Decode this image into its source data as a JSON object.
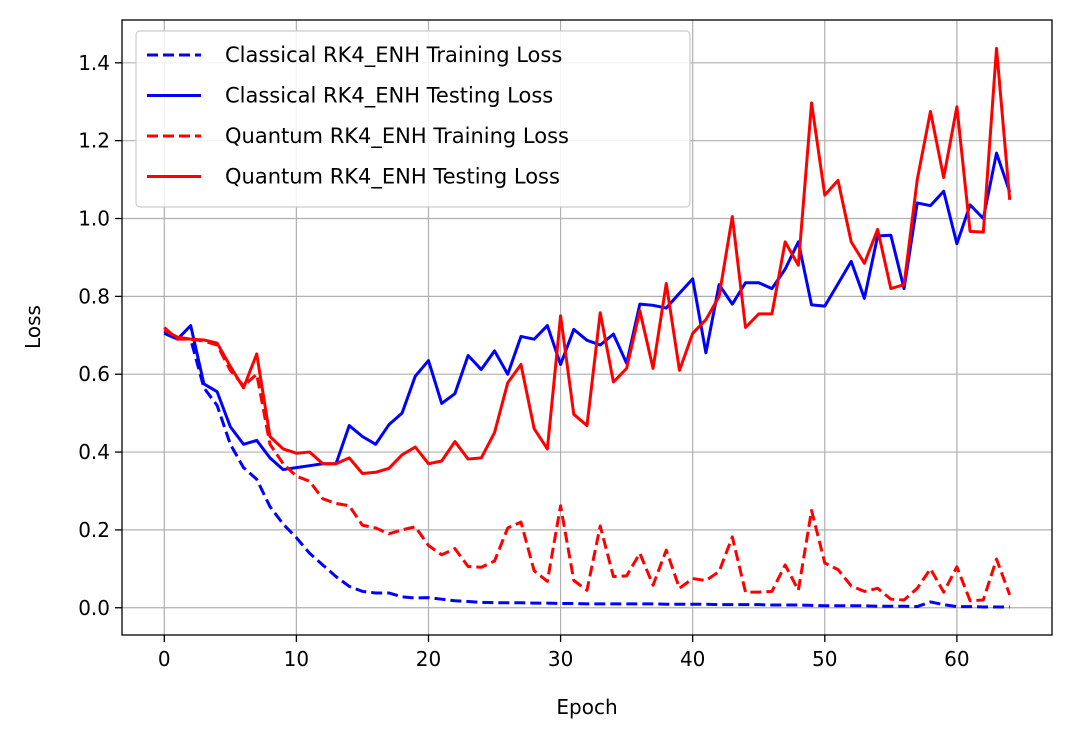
{
  "chart_data": {
    "type": "line",
    "title": "",
    "xlabel": "Epoch",
    "ylabel": "Loss",
    "xlim": [
      -3.2,
      67.2
    ],
    "ylim": [
      -0.07,
      1.51
    ],
    "xticks": [
      0,
      10,
      20,
      30,
      40,
      50,
      60
    ],
    "xtick_labels": [
      "0",
      "10",
      "20",
      "30",
      "40",
      "50",
      "60"
    ],
    "yticks": [
      0.0,
      0.2,
      0.4,
      0.6,
      0.8,
      1.0,
      1.2,
      1.4
    ],
    "ytick_labels": [
      "0.0",
      "0.2",
      "0.4",
      "0.6",
      "0.8",
      "1.0",
      "1.2",
      "1.4"
    ],
    "grid": true,
    "legend_position": "top-left",
    "series": [
      {
        "name": "Classical RK4_ENH Training Loss",
        "color": "#0000ff",
        "style": "dashed",
        "values": [
          0.71,
          0.695,
          0.69,
          0.565,
          0.52,
          0.42,
          0.36,
          0.33,
          0.26,
          0.215,
          0.18,
          0.14,
          0.11,
          0.08,
          0.055,
          0.042,
          0.038,
          0.038,
          0.028,
          0.025,
          0.026,
          0.022,
          0.018,
          0.016,
          0.014,
          0.013,
          0.013,
          0.013,
          0.012,
          0.012,
          0.011,
          0.011,
          0.01,
          0.01,
          0.01,
          0.01,
          0.01,
          0.01,
          0.009,
          0.009,
          0.009,
          0.009,
          0.008,
          0.008,
          0.008,
          0.008,
          0.007,
          0.007,
          0.007,
          0.006,
          0.005,
          0.005,
          0.005,
          0.005,
          0.004,
          0.004,
          0.004,
          0.003,
          0.015,
          0.008,
          0.003,
          0.003,
          0.002,
          0.002,
          0.002
        ]
      },
      {
        "name": "Classical RK4_ENH Testing Loss",
        "color": "#0000ff",
        "style": "solid",
        "values": [
          0.705,
          0.69,
          0.725,
          0.575,
          0.555,
          0.465,
          0.42,
          0.43,
          0.385,
          0.355,
          0.36,
          0.365,
          0.37,
          0.37,
          0.468,
          0.44,
          0.42,
          0.47,
          0.5,
          0.595,
          0.635,
          0.525,
          0.55,
          0.648,
          0.612,
          0.66,
          0.6,
          0.697,
          0.69,
          0.725,
          0.625,
          0.715,
          0.687,
          0.675,
          0.703,
          0.628,
          0.78,
          0.777,
          0.77,
          0.808,
          0.845,
          0.655,
          0.83,
          0.78,
          0.835,
          0.835,
          0.82,
          0.87,
          0.94,
          0.778,
          0.775,
          0.832,
          0.89,
          0.795,
          0.955,
          0.957,
          0.82,
          1.04,
          1.033,
          1.07,
          0.935,
          1.035,
          1.0,
          1.168,
          1.068
        ]
      },
      {
        "name": "Quantum RK4_ENH Training Loss",
        "color": "#ff0000",
        "style": "dashed",
        "values": [
          0.72,
          0.69,
          0.69,
          0.685,
          0.675,
          0.61,
          0.57,
          0.6,
          0.42,
          0.37,
          0.338,
          0.325,
          0.28,
          0.268,
          0.262,
          0.212,
          0.205,
          0.19,
          0.2,
          0.208,
          0.16,
          0.136,
          0.152,
          0.106,
          0.104,
          0.12,
          0.205,
          0.22,
          0.095,
          0.068,
          0.262,
          0.07,
          0.045,
          0.21,
          0.08,
          0.082,
          0.14,
          0.058,
          0.148,
          0.05,
          0.075,
          0.07,
          0.093,
          0.182,
          0.04,
          0.04,
          0.042,
          0.11,
          0.045,
          0.25,
          0.115,
          0.098,
          0.056,
          0.042,
          0.05,
          0.022,
          0.02,
          0.05,
          0.1,
          0.04,
          0.105,
          0.018,
          0.02,
          0.125,
          0.033
        ]
      },
      {
        "name": "Quantum RK4_ENH Testing Loss",
        "color": "#ff0000",
        "style": "solid",
        "values": [
          0.713,
          0.695,
          0.69,
          0.688,
          0.68,
          0.62,
          0.565,
          0.652,
          0.44,
          0.408,
          0.397,
          0.4,
          0.37,
          0.37,
          0.385,
          0.345,
          0.348,
          0.358,
          0.393,
          0.413,
          0.37,
          0.377,
          0.427,
          0.382,
          0.385,
          0.45,
          0.578,
          0.625,
          0.46,
          0.408,
          0.75,
          0.497,
          0.468,
          0.758,
          0.58,
          0.615,
          0.763,
          0.615,
          0.833,
          0.61,
          0.705,
          0.74,
          0.8,
          1.005,
          0.72,
          0.755,
          0.755,
          0.94,
          0.88,
          1.297,
          1.06,
          1.098,
          0.94,
          0.885,
          0.972,
          0.82,
          0.83,
          1.1,
          1.275,
          1.105,
          1.287,
          0.967,
          0.965,
          1.437,
          1.048
        ]
      }
    ]
  }
}
